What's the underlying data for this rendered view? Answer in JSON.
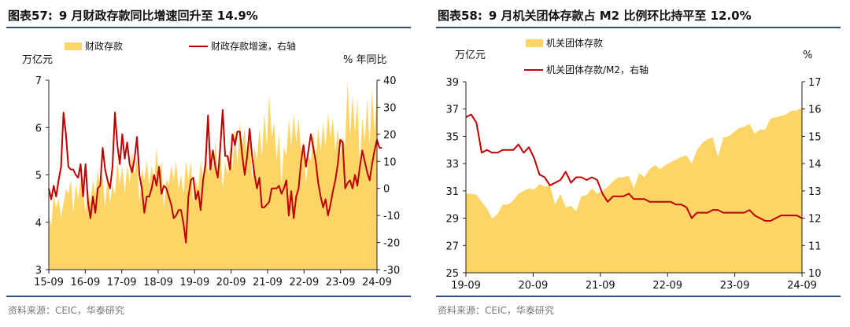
{
  "panels": [
    {
      "title_prefix": "图表57:",
      "title_text": "9 月财政存款同比增速回升至 14.9%",
      "source": "资料来源：CEIC，华泰研究",
      "colors": {
        "area": "#fdd566",
        "line": "#c00000"
      },
      "chart_data": {
        "type": "area",
        "left_unit": "万亿元",
        "right_unit": "% 年同比",
        "y_left": {
          "min": 3,
          "max": 7,
          "ticks": [
            3,
            4,
            5,
            6,
            7
          ]
        },
        "y_right": {
          "min": -30,
          "max": 40,
          "ticks": [
            -30,
            -20,
            -10,
            0,
            10,
            20,
            30,
            40
          ]
        },
        "x_ticks": [
          "15-09",
          "16-09",
          "17-09",
          "18-09",
          "19-09",
          "20-09",
          "21-09",
          "22-09",
          "23-09",
          "24-09"
        ],
        "series": [
          {
            "name": "财政存款",
            "axis": "left",
            "kind": "area",
            "values": [
              4.2,
              3.9,
              4.6,
              4.3,
              4.5,
              4.1,
              4.4,
              4.7,
              4.6,
              4.9,
              4.2,
              4.8,
              4.5,
              4.9,
              4.6,
              4.2,
              4.7,
              4.4,
              4.9,
              4.6,
              5.1,
              4.7,
              5.0,
              4.3,
              5.0,
              4.4,
              4.8,
              4.6,
              5.3,
              4.8,
              5.2,
              4.6,
              5.2,
              4.8,
              5.5,
              5.0,
              5.4,
              4.4,
              5.1,
              4.9,
              5.3,
              4.8,
              5.2,
              4.8,
              5.6,
              4.9,
              5.3,
              4.3,
              4.9,
              4.8,
              5.2,
              4.9,
              5.3,
              4.7,
              5.0,
              4.6,
              5.3,
              4.9,
              5.3,
              4.4,
              4.9,
              4.7,
              5.3,
              4.9,
              5.5,
              5.0,
              5.6,
              5.1,
              5.7,
              5.0,
              5.6,
              4.7,
              5.3,
              5.0,
              5.6,
              5.1,
              6.0,
              5.2,
              6.1,
              5.6,
              6.0,
              5.3,
              6.0,
              4.9,
              5.6,
              5.3,
              6.0,
              5.4,
              6.3,
              5.6,
              6.7,
              5.8,
              6.1,
              5.3,
              5.9,
              4.8,
              5.6,
              5.4,
              6.2,
              5.6,
              6.3,
              5.7,
              6.2,
              5.5,
              5.7,
              4.8,
              5.4,
              5.3,
              5.9,
              5.4,
              6.0,
              5.5,
              6.1,
              5.6,
              6.3,
              5.8,
              6.2,
              5.5,
              6.0,
              5.4,
              5.8,
              5.6,
              7.0,
              5.8,
              6.7,
              5.9,
              6.6,
              5.2,
              6.2,
              5.7,
              6.6,
              5.6,
              6.8,
              5.9,
              6.7
            ]
          },
          {
            "name": "财政存款增速，右轴",
            "axis": "right",
            "kind": "line",
            "values": [
              0,
              -4,
              1,
              -3,
              3,
              8,
              28,
              20,
              8,
              7,
              7,
              5,
              4,
              9,
              -3,
              9,
              -5,
              -11,
              -3,
              -9,
              0,
              1,
              15,
              7,
              3,
              0,
              8,
              28,
              16,
              9,
              20,
              11,
              17,
              9,
              6,
              11,
              19,
              5,
              0,
              -9,
              -3,
              -3,
              0,
              5,
              1,
              8,
              -2,
              1,
              0,
              -3,
              -6,
              -11,
              -10,
              -8,
              -8,
              -13,
              -20,
              -3,
              3,
              4,
              -4,
              -1,
              -8,
              3,
              9,
              27,
              7,
              14,
              8,
              4,
              15,
              29,
              12,
              12,
              7,
              20,
              16,
              21,
              21,
              12,
              5,
              12,
              22,
              12,
              5,
              0,
              4,
              -7,
              -7,
              -6,
              -5,
              0,
              0,
              0,
              1,
              -2,
              0,
              3,
              -10,
              -1,
              -11,
              -3,
              0,
              10,
              16,
              8,
              14,
              20,
              15,
              10,
              2,
              -3,
              -7,
              -4,
              -10,
              -6,
              -1,
              3,
              9,
              18,
              17,
              0,
              2,
              3,
              0,
              5,
              1,
              8,
              14,
              10,
              6,
              3,
              9,
              14,
              18,
              15,
              15
            ]
          }
        ]
      }
    },
    {
      "title_prefix": "图表58:",
      "title_text": "9 月机关团体存款占 M2 比例环比持平至 12.0%",
      "source": "资料来源：CEIC，华泰研究",
      "colors": {
        "area": "#fdd566",
        "line": "#c00000"
      },
      "chart_data": {
        "type": "area",
        "left_unit": "万亿元",
        "right_unit": "%",
        "y_left": {
          "min": 25,
          "max": 39,
          "ticks": [
            25,
            27,
            29,
            31,
            33,
            35,
            37,
            39
          ]
        },
        "y_right": {
          "min": 10,
          "max": 17,
          "ticks": [
            10,
            11,
            12,
            13,
            14,
            15,
            16,
            17
          ]
        },
        "x_ticks": [
          "19-09",
          "20-09",
          "21-09",
          "22-09",
          "23-09",
          "24-09"
        ],
        "series": [
          {
            "name": "机关团体存款",
            "axis": "left",
            "kind": "area",
            "values": [
              30.8,
              30.8,
              30.7,
              30.2,
              29.7,
              29.0,
              29.3,
              30.0,
              30.0,
              30.3,
              30.8,
              31.0,
              31.2,
              31.1,
              31.5,
              31.3,
              31.4,
              30.0,
              30.8,
              29.8,
              29.9,
              29.5,
              30.6,
              30.7,
              31.2,
              30.8,
              31.0,
              31.3,
              31.7,
              32.0,
              32.0,
              32.1,
              31.2,
              32.3,
              32.0,
              32.6,
              32.9,
              32.6,
              32.9,
              33.1,
              33.3,
              33.5,
              33.6,
              33.0,
              34.0,
              34.5,
              34.8,
              34.9,
              33.5,
              34.9,
              35.0,
              35.3,
              35.6,
              35.7,
              35.9,
              35.2,
              35.5,
              35.5,
              36.3,
              36.4,
              36.5,
              36.6,
              36.9,
              36.9,
              37.1
            ]
          },
          {
            "name": "机关团体存款/M2，右轴",
            "axis": "right",
            "kind": "line",
            "values": [
              15.7,
              15.8,
              15.5,
              14.4,
              14.5,
              14.4,
              14.4,
              14.5,
              14.5,
              14.5,
              14.7,
              14.4,
              14.6,
              14.2,
              13.6,
              13.5,
              13.2,
              13.3,
              13.4,
              13.7,
              13.3,
              13.5,
              13.5,
              13.4,
              13.5,
              13.4,
              12.9,
              12.6,
              12.8,
              12.8,
              12.8,
              12.9,
              12.7,
              12.7,
              12.7,
              12.6,
              12.6,
              12.6,
              12.6,
              12.6,
              12.5,
              12.5,
              12.4,
              12.0,
              12.2,
              12.2,
              12.2,
              12.3,
              12.3,
              12.2,
              12.2,
              12.2,
              12.2,
              12.2,
              12.3,
              12.1,
              12.0,
              11.9,
              11.9,
              12.0,
              12.1,
              12.1,
              12.1,
              12.1,
              12.0
            ]
          }
        ]
      }
    }
  ]
}
